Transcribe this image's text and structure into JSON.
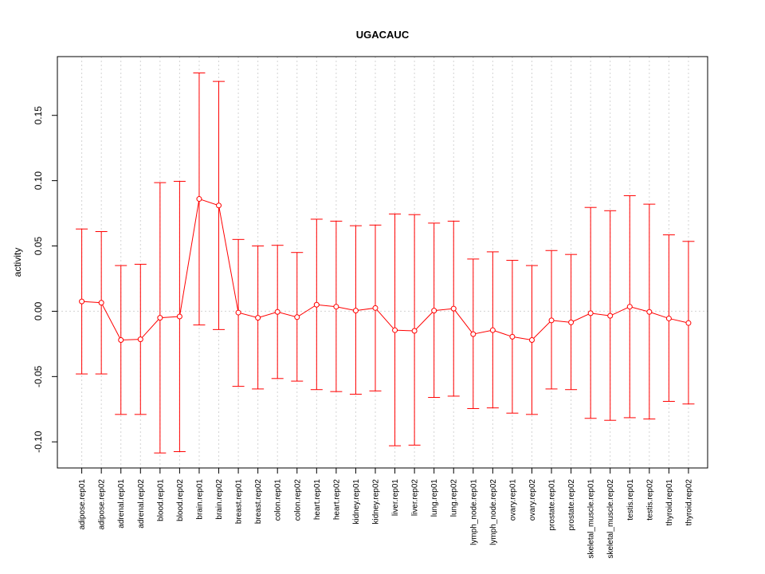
{
  "chart_data": {
    "type": "line",
    "title": "UGACAUC",
    "xlabel": "",
    "ylabel": "activity",
    "ylim": [
      -0.12,
      0.195
    ],
    "yticks": [
      -0.1,
      -0.05,
      0.0,
      0.05,
      0.1,
      0.15
    ],
    "ytick_labels": [
      "-0.10",
      "-0.05",
      "0.00",
      "0.05",
      "0.10",
      "0.15"
    ],
    "grid": true,
    "color": "#ff0000",
    "categories": [
      "adipose.rep01",
      "adipose.rep02",
      "adrenal.rep01",
      "adrenal.rep02",
      "blood.rep01",
      "blood.rep02",
      "brain.rep01",
      "brain.rep02",
      "breast.rep01",
      "breast.rep02",
      "colon.rep01",
      "colon.rep02",
      "heart.rep01",
      "heart.rep02",
      "kidney.rep01",
      "kidney.rep02",
      "liver.rep01",
      "liver.rep02",
      "lung.rep01",
      "lung.rep02",
      "lymph_node.rep01",
      "lymph_node.rep02",
      "ovary.rep01",
      "ovary.rep02",
      "prostate.rep01",
      "prostate.rep02",
      "skeletal_muscle.rep01",
      "skeletal_muscle.rep02",
      "testis.rep01",
      "testis.rep02",
      "thyroid.rep01",
      "thyroid.rep02"
    ],
    "values": [
      0.0075,
      0.0065,
      -0.022,
      -0.0215,
      -0.005,
      -0.004,
      0.086,
      0.081,
      -0.001,
      -0.005,
      -0.0005,
      -0.0045,
      0.005,
      0.0035,
      0.0005,
      0.0025,
      -0.0145,
      -0.015,
      0.0005,
      0.002,
      -0.0175,
      -0.0145,
      -0.0195,
      -0.022,
      -0.007,
      -0.0085,
      -0.0015,
      -0.0035,
      0.0035,
      -0.0005,
      -0.0055,
      -0.009
    ],
    "upper": [
      0.063,
      0.061,
      0.035,
      0.036,
      0.0985,
      0.0995,
      0.1825,
      0.176,
      0.055,
      0.05,
      0.0505,
      0.045,
      0.0705,
      0.069,
      0.0655,
      0.066,
      0.0745,
      0.074,
      0.0675,
      0.069,
      0.04,
      0.0455,
      0.039,
      0.035,
      0.0465,
      0.0435,
      0.0795,
      0.077,
      0.0885,
      0.082,
      0.0585,
      0.0535
    ],
    "lower": [
      -0.048,
      -0.048,
      -0.079,
      -0.079,
      -0.1085,
      -0.1075,
      -0.0105,
      -0.014,
      -0.0575,
      -0.0595,
      -0.0515,
      -0.0535,
      -0.06,
      -0.0615,
      -0.0635,
      -0.061,
      -0.103,
      -0.1025,
      -0.066,
      -0.065,
      -0.0745,
      -0.074,
      -0.078,
      -0.079,
      -0.0595,
      -0.06,
      -0.082,
      -0.0835,
      -0.0815,
      -0.0825,
      -0.069,
      -0.071
    ]
  }
}
